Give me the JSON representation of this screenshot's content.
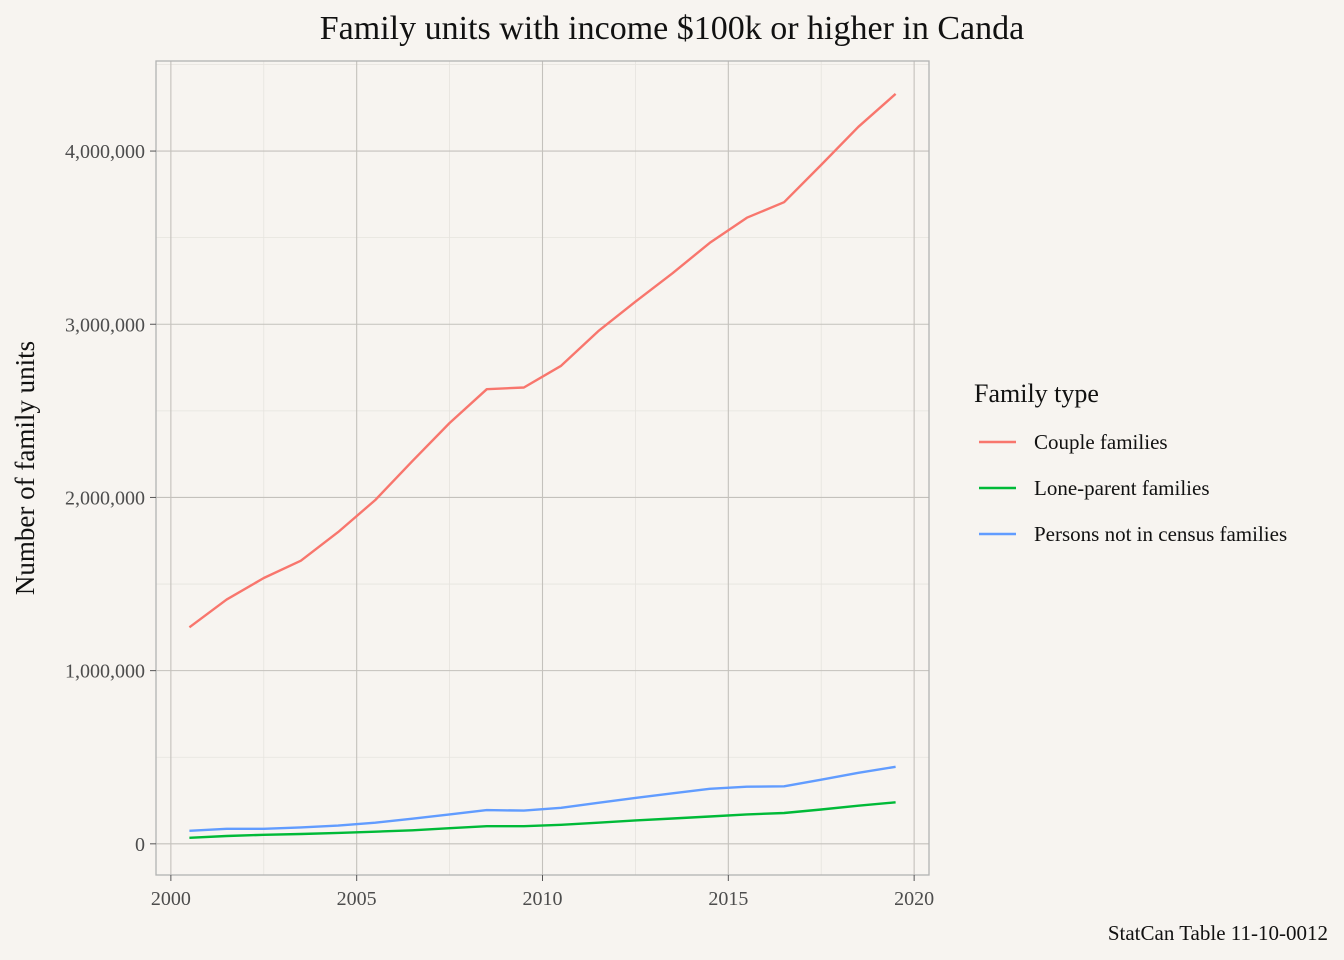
{
  "chart_data": {
    "type": "line",
    "title": "Family units with income $100k or higher in Canda",
    "xlabel": "",
    "ylabel": "Number of family units",
    "caption": "StatCan Table 11-10-0012",
    "xlim": [
      1999.6,
      2020.4
    ],
    "ylim": [
      -180000,
      4520000
    ],
    "x_ticks": [
      2000,
      2005,
      2010,
      2015,
      2020
    ],
    "x_tick_labels": [
      "2000",
      "2005",
      "2010",
      "2015",
      "2020"
    ],
    "y_ticks": [
      0,
      1000000,
      2000000,
      3000000,
      4000000
    ],
    "y_tick_labels": [
      "0",
      "1,000,000",
      "2,000,000",
      "3,000,000",
      "4,000,000"
    ],
    "grid": true,
    "legend": {
      "title": "Family type",
      "position": "right"
    },
    "x": [
      2000.5,
      2001.5,
      2002.5,
      2003.5,
      2004.5,
      2005.5,
      2006.5,
      2007.5,
      2008.5,
      2009.5,
      2010.5,
      2011.5,
      2012.5,
      2013.5,
      2014.5,
      2015.5,
      2016.5,
      2017.5,
      2018.5,
      2019.5
    ],
    "series": [
      {
        "name": "Couple families",
        "color": "#f8766d",
        "values": [
          1250000,
          1410000,
          1535000,
          1635000,
          1800000,
          1985000,
          2210000,
          2430000,
          2625000,
          2635000,
          2760000,
          2960000,
          3130000,
          3295000,
          3470000,
          3615000,
          3705000,
          3920000,
          4140000,
          4330000
        ]
      },
      {
        "name": "Lone-parent families",
        "color": "#00ba38",
        "values": [
          35000,
          45000,
          52000,
          57000,
          63000,
          70000,
          78000,
          90000,
          102000,
          102000,
          110000,
          122000,
          135000,
          146000,
          158000,
          170000,
          178000,
          198000,
          220000,
          240000
        ]
      },
      {
        "name": "Persons not in census families",
        "color": "#619cff",
        "values": [
          75000,
          87000,
          87000,
          95000,
          105000,
          122000,
          145000,
          170000,
          195000,
          192000,
          208000,
          237000,
          265000,
          292000,
          318000,
          330000,
          332000,
          370000,
          410000,
          445000
        ]
      }
    ]
  }
}
